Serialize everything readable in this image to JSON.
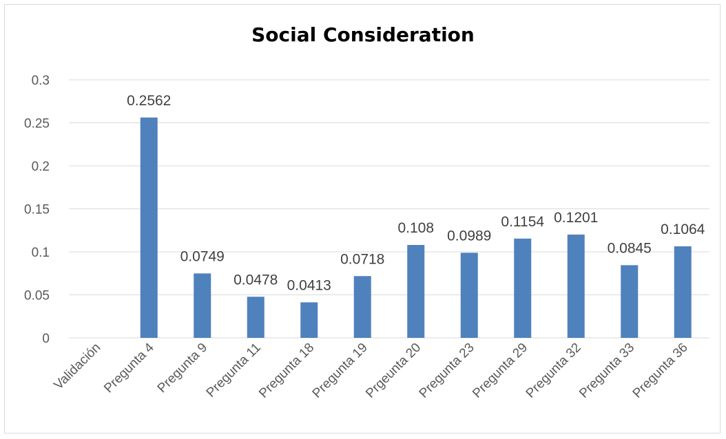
{
  "chart_data": {
    "type": "bar",
    "title": "Social Consideration",
    "xlabel": "",
    "ylabel": "",
    "categories": [
      "Validación",
      "Pregunta 4",
      "Pregunta 9",
      "Pregunta 11",
      "Pregunta 18",
      "Pregunta 19",
      "Prgeunta 20",
      "Pregunta 23",
      "Pregunta 29",
      "Pregunta 32",
      "Pregunta 33",
      "Pregunta 36"
    ],
    "values": [
      null,
      0.2562,
      0.0749,
      0.0478,
      0.0413,
      0.0718,
      0.108,
      0.0989,
      0.1154,
      0.1201,
      0.0845,
      0.1064
    ],
    "data_labels": [
      "",
      "0.2562",
      "0.0749",
      "0.0478",
      "0.0413",
      "0.0718",
      "0.108",
      "0.0989",
      "0.1154",
      "0.1201",
      "0.0845",
      "0.1064"
    ],
    "ylim": [
      0,
      0.3
    ],
    "yticks": [
      "0",
      "0.05",
      "0.1",
      "0.15",
      "0.2",
      "0.25",
      "0.3"
    ],
    "grid": true,
    "legend": "none",
    "bar_color": "#4f81bd",
    "grid_color": "#d9d9d9"
  }
}
